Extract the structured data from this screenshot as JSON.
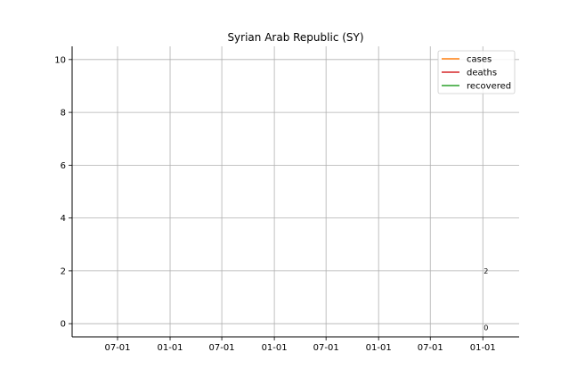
{
  "chart_data": {
    "type": "line",
    "title": "Syrian Arab Republic (SY)",
    "xlabel": "",
    "ylabel": "",
    "x_range": [
      "2020-01-24",
      "2024-05-07"
    ],
    "ylim": [
      -0.5,
      10.5
    ],
    "grid": true,
    "legend_position": "top-right",
    "x_ticks": [
      {
        "date": "2020-07-01",
        "label": "07-01"
      },
      {
        "date": "2021-01-01",
        "label": "01-01"
      },
      {
        "date": "2021-07-01",
        "label": "07-01"
      },
      {
        "date": "2022-01-01",
        "label": "01-01"
      },
      {
        "date": "2022-07-01",
        "label": "07-01"
      },
      {
        "date": "2023-01-01",
        "label": "01-01"
      },
      {
        "date": "2023-07-01",
        "label": "07-01"
      },
      {
        "date": "2024-01-01",
        "label": "01-01"
      }
    ],
    "y_ticks": [
      0,
      2,
      4,
      6,
      8,
      10
    ],
    "series": [
      {
        "name": "cases",
        "color": "#ff7f0e",
        "points": []
      },
      {
        "name": "deaths",
        "color": "#d62728",
        "points": []
      },
      {
        "name": "recovered",
        "color": "#2ca02c",
        "points": []
      }
    ],
    "annotations": [
      {
        "date": "2024-01-01",
        "y": 2,
        "text": "2"
      },
      {
        "date": "2024-01-01",
        "y": -0.15,
        "text": "0"
      }
    ]
  }
}
